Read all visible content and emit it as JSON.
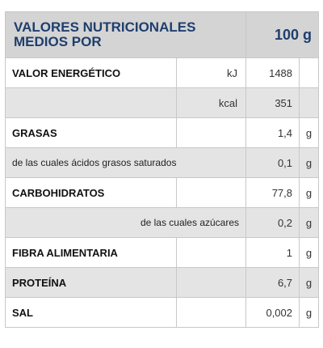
{
  "header": {
    "title": "VALORES NUTRICIONALES MEDIOS POR",
    "amount": "100 g"
  },
  "rows": [
    {
      "label": "VALOR ENERGÉTICO",
      "unit": "kJ",
      "value": "1488",
      "g": ""
    },
    {
      "label": "",
      "unit": "kcal",
      "value": "351",
      "g": ""
    },
    {
      "label": "GRASAS",
      "unit": "",
      "value": "1,4",
      "g": "g"
    },
    {
      "label": "de las cuales ácidos grasos saturados",
      "unit": "",
      "value": "0,1",
      "g": "g"
    },
    {
      "label": "CARBOHIDRATOS",
      "unit": "",
      "value": "77,8",
      "g": "g"
    },
    {
      "label": "de las cuales azúcares",
      "unit": "",
      "value": "0,2",
      "g": "g"
    },
    {
      "label": "FIBRA ALIMENTARIA",
      "unit": "",
      "value": "1",
      "g": "g"
    },
    {
      "label": "PROTEÍNA",
      "unit": "",
      "value": "6,7",
      "g": "g"
    },
    {
      "label": "SAL",
      "unit": "",
      "value": "0,002",
      "g": "g"
    }
  ]
}
